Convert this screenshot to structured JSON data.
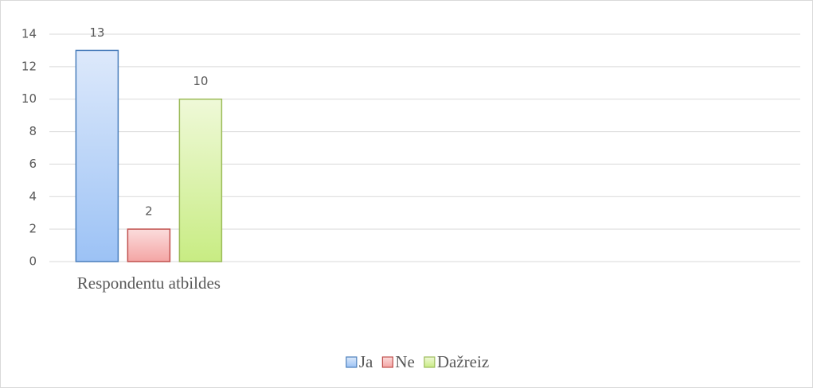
{
  "chart_data": {
    "type": "bar",
    "categories": [
      "Respondentu atbildes",
      null,
      null,
      null
    ],
    "series": [
      {
        "name": "Ja",
        "color": "#4a7ebb",
        "values": [
          13,
          null,
          null,
          null
        ]
      },
      {
        "name": "Ne",
        "color": "#c0504d",
        "values": [
          2,
          null,
          null,
          null
        ]
      },
      {
        "name": "Dažreiz",
        "color": "#9bbb59",
        "values": [
          10,
          null,
          null,
          null
        ]
      }
    ],
    "ylim": [
      0,
      14
    ],
    "yticks": [
      0,
      2,
      4,
      6,
      8,
      10,
      12,
      14
    ],
    "grid": true,
    "legend": "bottom"
  }
}
